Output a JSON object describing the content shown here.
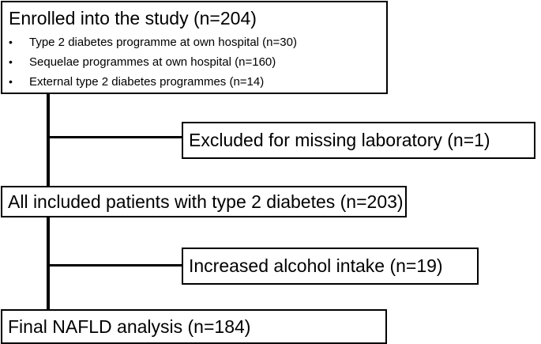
{
  "enrolled": {
    "title": "Enrolled into the study (n=204)",
    "items": [
      "Type 2 diabetes programme at own hospital (n=30)",
      "Sequelae programmes at own hospital (n=160)",
      "External type 2 diabetes programmes (n=14)"
    ]
  },
  "excluded_lab": {
    "label": "Excluded for missing laboratory (n=1)"
  },
  "included": {
    "label": "All included patients with type 2 diabetes (n=203)"
  },
  "excluded_alcohol": {
    "label": "Increased alcohol intake (n=19)"
  },
  "final": {
    "label": "Final NAFLD analysis (n=184)"
  },
  "bullet_glyph": "•"
}
